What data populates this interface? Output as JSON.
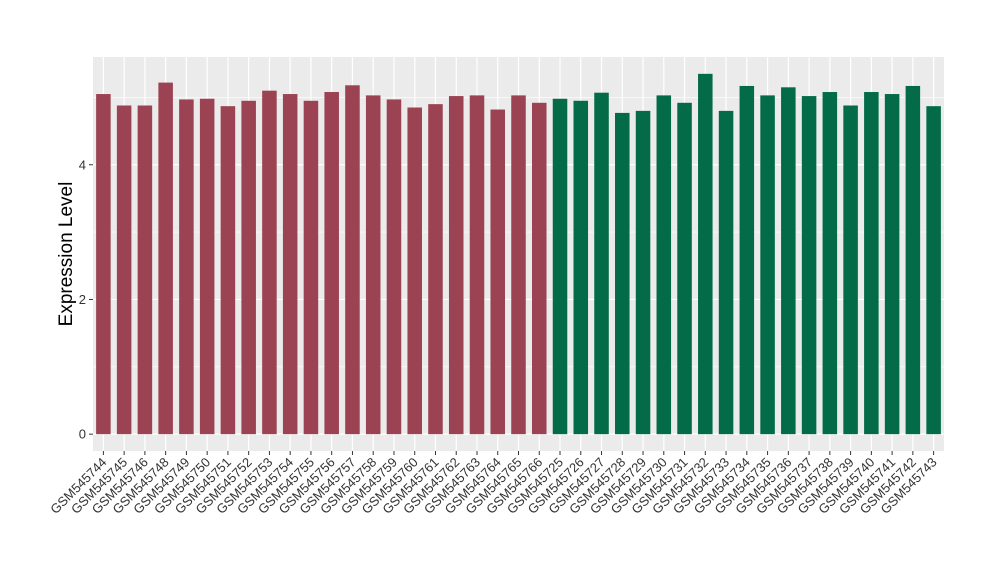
{
  "chart_data": {
    "type": "bar",
    "xlabel": "",
    "ylabel": "Expression Level",
    "ylim": [
      -0.25,
      5.6
    ],
    "yticks": [
      0,
      2,
      4
    ],
    "grid": true,
    "background": "#EBEBEB",
    "gridline_color": "#FFFFFF",
    "categories": [
      "GSM545744",
      "GSM545745",
      "GSM545746",
      "GSM545748",
      "GSM545749",
      "GSM545750",
      "GSM545751",
      "GSM545752",
      "GSM545753",
      "GSM545754",
      "GSM545755",
      "GSM545756",
      "GSM545757",
      "GSM545758",
      "GSM545759",
      "GSM545760",
      "GSM545761",
      "GSM545762",
      "GSM545763",
      "GSM545764",
      "GSM545765",
      "GSM545766",
      "GSM545725",
      "GSM545726",
      "GSM545727",
      "GSM545728",
      "GSM545729",
      "GSM545730",
      "GSM545731",
      "GSM545732",
      "GSM545733",
      "GSM545734",
      "GSM545735",
      "GSM545736",
      "GSM545737",
      "GSM545738",
      "GSM545739",
      "GSM545740",
      "GSM545741",
      "GSM545742",
      "GSM545743"
    ],
    "values": [
      5.05,
      4.88,
      4.88,
      5.22,
      4.97,
      4.98,
      4.87,
      4.95,
      5.1,
      5.05,
      4.95,
      5.08,
      5.18,
      5.03,
      4.97,
      4.85,
      4.9,
      5.02,
      5.03,
      4.82,
      5.03,
      4.92,
      4.98,
      4.95,
      5.07,
      4.77,
      4.8,
      5.03,
      4.92,
      5.35,
      4.8,
      5.17,
      5.03,
      5.15,
      5.02,
      5.08,
      4.88,
      5.08,
      5.05,
      5.17,
      4.87
    ],
    "group_colors": [
      "#9B4352",
      "#036B47"
    ],
    "group_sizes": [
      22,
      19
    ]
  }
}
